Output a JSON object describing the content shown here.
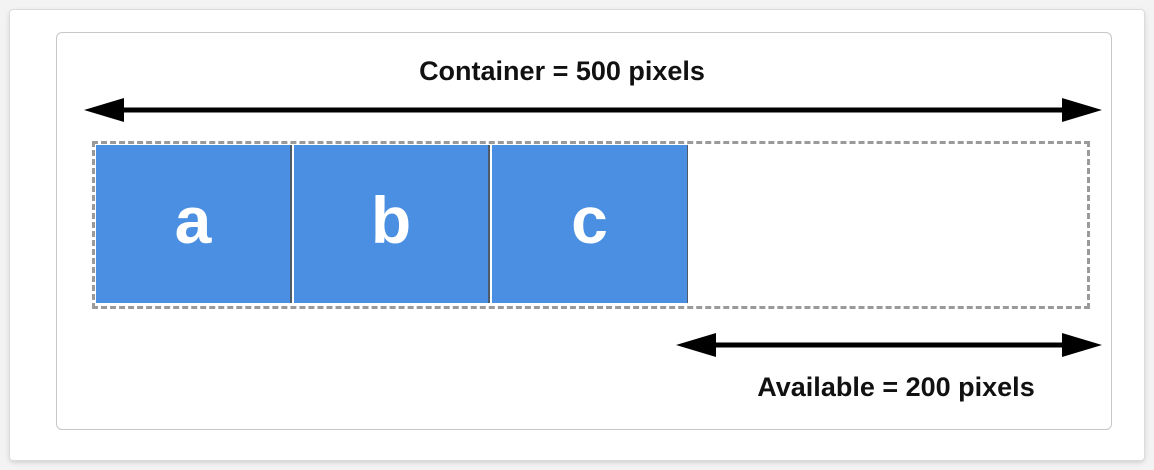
{
  "diagram": {
    "container_label": "Container = 500 pixels",
    "available_label": "Available = 200 pixels",
    "items": [
      {
        "label": "a"
      },
      {
        "label": "b"
      },
      {
        "label": "c"
      }
    ],
    "colors": {
      "item_fill": "#4a8fe2",
      "item_text": "#ffffff",
      "container_border": "#9a9a9a",
      "arrow": "#000000"
    }
  }
}
